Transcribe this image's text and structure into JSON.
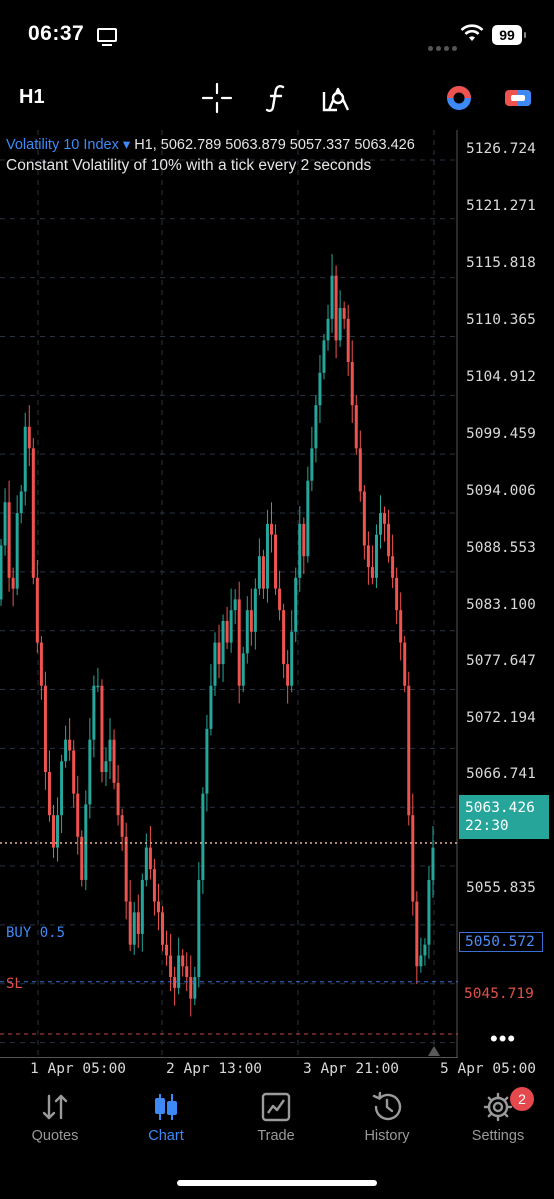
{
  "status": {
    "time": "06:37",
    "battery": "99"
  },
  "toolbar": {
    "timeframe": "H1"
  },
  "chart_info": {
    "symbol": "Volatility 10 Index",
    "ohlc": "H1, 5062.789 5063.879 5057.337 5063.426",
    "description": "Constant Volatility of 10% with a tick every 2 seconds"
  },
  "price_axis": [
    "5126.724",
    "5121.271",
    "5115.818",
    "5110.365",
    "5104.912",
    "5099.459",
    "5094.006",
    "5088.553",
    "5083.100",
    "5077.647",
    "5072.194",
    "5066.741",
    "5055.835"
  ],
  "current": {
    "price": "5063.426",
    "countdown": "22:30"
  },
  "orders": {
    "buy_label": "BUY 0.5",
    "buy_price": "5050.572",
    "sl_label": "SL",
    "sl_price": "5045.719"
  },
  "time_axis": [
    "1 Apr 05:00",
    "2 Apr 13:00",
    "3 Apr 21:00",
    "5 Apr 05:00"
  ],
  "tabs": [
    {
      "label": "Quotes",
      "icon": "quotes-arrows-icon"
    },
    {
      "label": "Chart",
      "icon": "chart-candles-icon"
    },
    {
      "label": "Trade",
      "icon": "trade-chart-icon"
    },
    {
      "label": "History",
      "icon": "history-clock-icon"
    },
    {
      "label": "Settings",
      "icon": "settings-gear-icon"
    }
  ],
  "settings_badge": "2",
  "colors": {
    "bull": "#26a69a",
    "bear": "#ef5350",
    "accent": "#3d8af7",
    "background": "#000000"
  },
  "chart_data": {
    "type": "candlestick",
    "ylim": [
      5043.5,
      5129.5
    ],
    "closes": [
      5091,
      5095,
      5088,
      5087,
      5094,
      5096,
      5102,
      5100,
      5088,
      5082,
      5078,
      5070,
      5066,
      5063,
      5066,
      5071,
      5073,
      5072,
      5068,
      5064,
      5060,
      5067,
      5073,
      5078,
      5078,
      5070,
      5071,
      5073,
      5069,
      5066,
      5064,
      5058,
      5054,
      5057,
      5055,
      5060,
      5063,
      5061,
      5058,
      5057,
      5054,
      5053,
      5051,
      5050,
      5053,
      5052,
      5051,
      5049,
      5051,
      5060,
      5068,
      5074,
      5078,
      5082,
      5080,
      5084,
      5082,
      5085,
      5086,
      5078,
      5081,
      5085,
      5083,
      5087,
      5090,
      5087,
      5093,
      5092,
      5087,
      5085,
      5080,
      5078,
      5083,
      5088,
      5093,
      5090,
      5097,
      5100,
      5104,
      5107,
      5110,
      5112,
      5116,
      5110,
      5113,
      5112,
      5108,
      5104,
      5100,
      5096,
      5091,
      5089,
      5088,
      5092,
      5094,
      5093,
      5090,
      5088,
      5085,
      5082,
      5078,
      5066,
      5058,
      5052,
      5053,
      5054,
      5060,
      5063
    ]
  }
}
